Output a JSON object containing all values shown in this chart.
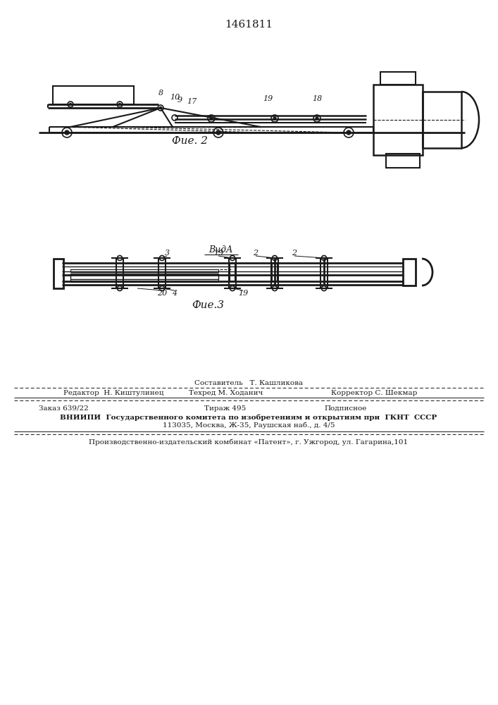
{
  "title": "1461811",
  "bg_color": "#ffffff",
  "line_color": "#1a1a1a",
  "fig2_caption": "Фие. 2",
  "fig3_caption": "Фие.3",
  "vid_a_label": "ВидА",
  "footer_sestavitel": "Составитель   Т. Кашликова",
  "footer_redaktor": "Редактор  Н. Киштулинец",
  "footer_tehred": "Техред М. Ходанич",
  "footer_korrektor": "Корректор С. Шекмар",
  "footer_zakaz": "Заказ 639/22",
  "footer_tirazh": "Тираж 495",
  "footer_podpisnoe": "Подписное",
  "footer_vniip1": "ВНИИПИ  Государственного комитета по изобретениям и открытиям при  ГКНТ  СССР",
  "footer_vniip2": "113035, Москва, Ж-35, Раушская наб., д. 4/5",
  "footer_patent": "Производственно-издательский комбинат «Патент», г. Ужгород, ул. Гагарина,101"
}
